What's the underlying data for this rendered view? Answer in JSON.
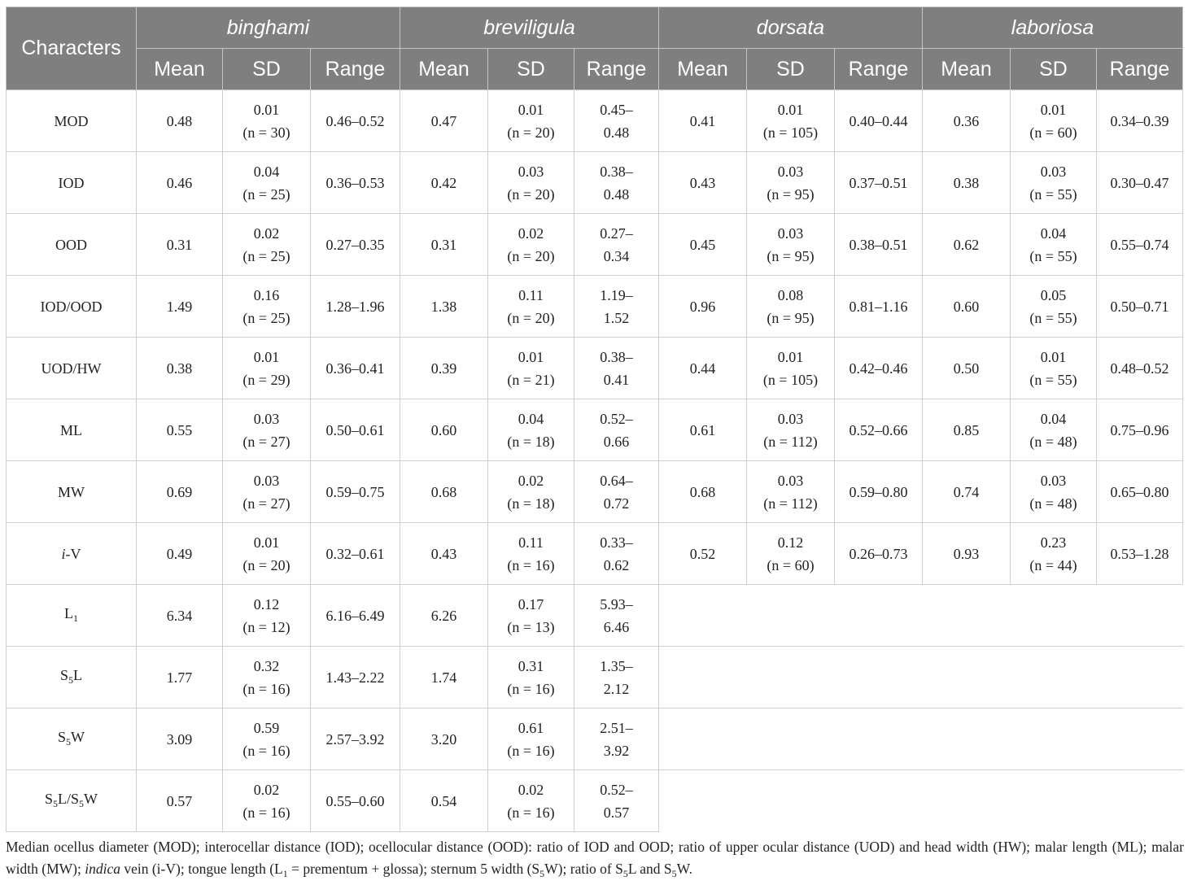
{
  "header": {
    "characters": "Characters",
    "species": [
      "binghami",
      "breviligula",
      "dorsata",
      "laboriosa"
    ],
    "sub": [
      "Mean",
      "SD",
      "Range"
    ]
  },
  "rows": [
    {
      "label": "MOD",
      "label_html": "MOD",
      "data": [
        [
          "0.48",
          "0.01",
          "(n = 30)",
          "0.46–0.52",
          ""
        ],
        [
          "0.47",
          "0.01",
          "(n = 20)",
          "0.45–",
          "0.48"
        ],
        [
          "0.41",
          "0.01",
          "(n = 105)",
          "0.40–0.44",
          ""
        ],
        [
          "0.36",
          "0.01",
          "(n = 60)",
          "0.34–0.39",
          ""
        ]
      ]
    },
    {
      "label": "IOD",
      "label_html": "IOD",
      "data": [
        [
          "0.46",
          "0.04",
          "(n = 25)",
          "0.36–0.53",
          ""
        ],
        [
          "0.42",
          "0.03",
          "(n = 20)",
          "0.38–",
          "0.48"
        ],
        [
          "0.43",
          "0.03",
          "(n = 95)",
          "0.37–0.51",
          ""
        ],
        [
          "0.38",
          "0.03",
          "(n = 55)",
          "0.30–0.47",
          ""
        ]
      ]
    },
    {
      "label": "OOD",
      "label_html": "OOD",
      "data": [
        [
          "0.31",
          "0.02",
          "(n = 25)",
          "0.27–0.35",
          ""
        ],
        [
          "0.31",
          "0.02",
          "(n = 20)",
          "0.27–",
          "0.34"
        ],
        [
          "0.45",
          "0.03",
          "(n = 95)",
          "0.38–0.51",
          ""
        ],
        [
          "0.62",
          "0.04",
          "(n = 55)",
          "0.55–0.74",
          ""
        ]
      ]
    },
    {
      "label": "IOD/OOD",
      "label_html": "IOD/OOD",
      "data": [
        [
          "1.49",
          "0.16",
          "(n = 25)",
          "1.28–1.96",
          ""
        ],
        [
          "1.38",
          "0.11",
          "(n = 20)",
          "1.19–",
          "1.52"
        ],
        [
          "0.96",
          "0.08",
          "(n = 95)",
          "0.81–1.16",
          ""
        ],
        [
          "0.60",
          "0.05",
          "(n = 55)",
          "0.50–0.71",
          ""
        ]
      ]
    },
    {
      "label": "UOD/HW",
      "label_html": "UOD/HW",
      "data": [
        [
          "0.38",
          "0.01",
          "(n = 29)",
          "0.36–0.41",
          ""
        ],
        [
          "0.39",
          "0.01",
          "(n = 21)",
          "0.38–",
          "0.41"
        ],
        [
          "0.44",
          "0.01",
          "(n = 105)",
          "0.42–0.46",
          ""
        ],
        [
          "0.50",
          "0.01",
          "(n = 55)",
          "0.48–0.52",
          ""
        ]
      ]
    },
    {
      "label": "ML",
      "label_html": "ML",
      "data": [
        [
          "0.55",
          "0.03",
          "(n = 27)",
          "0.50–0.61",
          ""
        ],
        [
          "0.60",
          "0.04",
          "(n = 18)",
          "0.52–",
          "0.66"
        ],
        [
          "0.61",
          "0.03",
          "(n = 112)",
          "0.52–0.66",
          ""
        ],
        [
          "0.85",
          "0.04",
          "(n = 48)",
          "0.75–0.96",
          ""
        ]
      ]
    },
    {
      "label": "MW",
      "label_html": "MW",
      "data": [
        [
          "0.69",
          "0.03",
          "(n = 27)",
          "0.59–0.75",
          ""
        ],
        [
          "0.68",
          "0.02",
          "(n = 18)",
          "0.64–",
          "0.72"
        ],
        [
          "0.68",
          "0.03",
          "(n = 112)",
          "0.59–0.80",
          ""
        ],
        [
          "0.74",
          "0.03",
          "(n = 48)",
          "0.65–0.80",
          ""
        ]
      ]
    },
    {
      "label": "i-V",
      "label_html": "<i>i</i>-V",
      "data": [
        [
          "0.49",
          "0.01",
          "(n = 20)",
          "0.32–0.61",
          ""
        ],
        [
          "0.43",
          "0.11",
          "(n = 16)",
          "0.33–",
          "0.62"
        ],
        [
          "0.52",
          "0.12",
          "(n = 60)",
          "0.26–0.73",
          ""
        ],
        [
          "0.93",
          "0.23",
          "(n = 44)",
          "0.53–1.28",
          ""
        ]
      ]
    },
    {
      "label": "L1",
      "label_html": "L<span class=\"sub5\">1</span>",
      "data": [
        [
          "6.34",
          "0.12",
          "(n = 12)",
          "6.16–6.49",
          ""
        ],
        [
          "6.26",
          "0.17",
          "(n = 13)",
          "5.93–",
          "6.46"
        ]
      ]
    },
    {
      "label": "S5L",
      "label_html": "S<span class=\"sub5\">5</span>L",
      "data": [
        [
          "1.77",
          "0.32",
          "(n = 16)",
          "1.43–2.22",
          ""
        ],
        [
          "1.74",
          "0.31",
          "(n = 16)",
          "1.35–",
          "2.12"
        ]
      ]
    },
    {
      "label": "S5W",
      "label_html": "S<span class=\"sub5\">5</span>W",
      "data": [
        [
          "3.09",
          "0.59",
          "(n = 16)",
          "2.57–3.92",
          ""
        ],
        [
          "3.20",
          "0.61",
          "(n = 16)",
          "2.51–",
          "3.92"
        ]
      ]
    },
    {
      "label": "S5L/S5W",
      "label_html": "S<span class=\"sub5\">5</span>L/S<span class=\"sub5\">5</span>W",
      "data": [
        [
          "0.57",
          "0.02",
          "(n = 16)",
          "0.55–0.60",
          ""
        ],
        [
          "0.54",
          "0.02",
          "(n = 16)",
          "0.52–",
          "0.57"
        ]
      ]
    }
  ],
  "footnote": "Median ocellus diameter (MOD); interocellar distance (IOD); ocellocular distance (OOD): ratio of IOD and OOD; ratio of upper ocular distance (UOD) and head width (HW); malar length (ML); malar width (MW); indica vein (i-V); tongue length (L1 = prementum + glossa); sternum 5 width (S5W); ratio of S5L and S5W.",
  "footnote_html": "Median ocellus diameter (MOD); interocellar distance (IOD); ocellocular distance (OOD): ratio of IOD and OOD; ratio of upper ocular distance (UOD) and head width (HW); malar length (ML); malar width (MW); <i>indica</i> vein (i-V); tongue length (L<span class=\"sub5\">1</span> = prementum + glossa); sternum 5 width (S<span class=\"sub5\">5</span>W); ratio of S<span class=\"sub5\">5</span>L and S<span class=\"sub5\">5</span>W."
}
